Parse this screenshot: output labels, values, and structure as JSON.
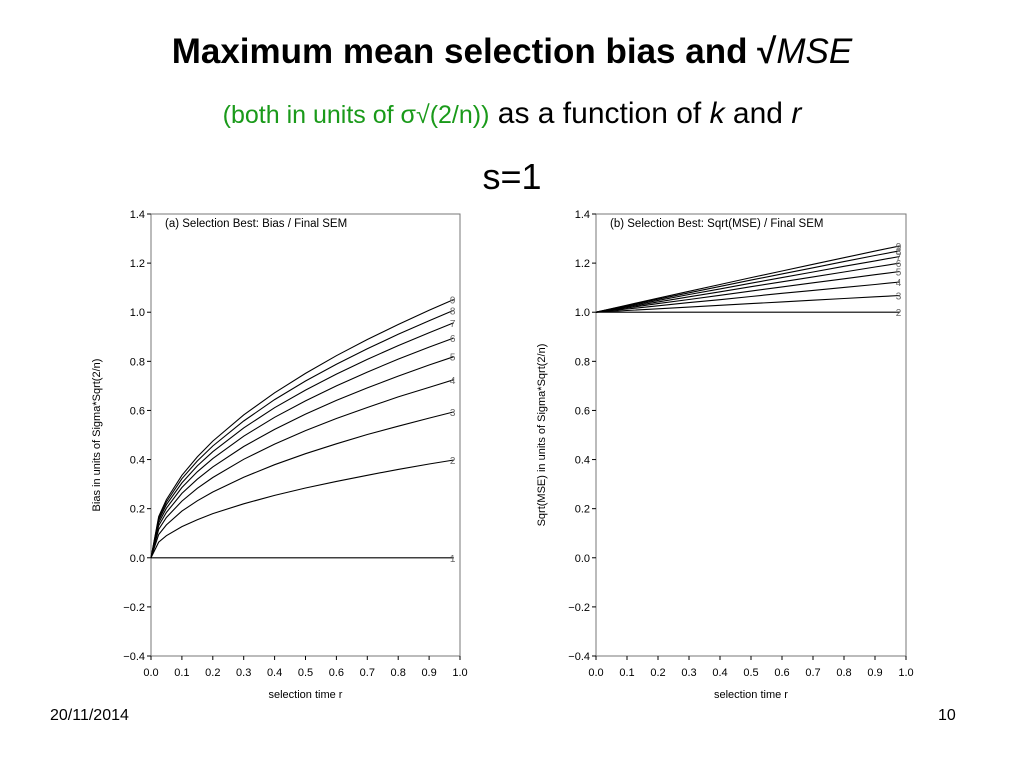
{
  "slide": {
    "title_bold": "Maximum mean selection bias and √",
    "title_mse": "MSE",
    "subtitle_green": "(both in units of σ√(2/n))",
    "subtitle_as": " as a function of ",
    "subtitle_k": "k",
    "subtitle_and": " and ",
    "subtitle_r": "r",
    "subtitle_s": "s=1",
    "date": "20/11/2014",
    "page": "10"
  },
  "chart_data": [
    {
      "type": "line",
      "title": "(a)  Selection Best:  Bias  /  Final SEM",
      "xlabel": "selection time  r",
      "ylabel": "Bias  in  units  of  Sigma*Sqrt(2/n)",
      "xlim": [
        0,
        1
      ],
      "ylim": [
        -0.4,
        1.4
      ],
      "xticks": [
        "0.0",
        "0.1",
        "0.2",
        "0.3",
        "0.4",
        "0.5",
        "0.6",
        "0.7",
        "0.8",
        "0.9",
        "1.0"
      ],
      "yticks": [
        "−0.4",
        "−0.2",
        "0.0",
        "0.2",
        "0.4",
        "0.6",
        "0.8",
        "1.0",
        "1.2",
        "1.4"
      ],
      "grid": false,
      "x": [
        0,
        0.025,
        0.05,
        0.1,
        0.15,
        0.2,
        0.3,
        0.4,
        0.5,
        0.6,
        0.7,
        0.8,
        0.9,
        0.98
      ],
      "series": [
        {
          "name": "1",
          "values": [
            0,
            0,
            0,
            0,
            0,
            0,
            0,
            0,
            0,
            0,
            0,
            0,
            0,
            0
          ]
        },
        {
          "name": "2",
          "values": [
            0,
            0.064,
            0.09,
            0.127,
            0.155,
            0.18,
            0.22,
            0.254,
            0.284,
            0.311,
            0.336,
            0.36,
            0.382,
            0.398
          ]
        },
        {
          "name": "3",
          "values": [
            0,
            0.095,
            0.134,
            0.19,
            0.232,
            0.268,
            0.328,
            0.379,
            0.424,
            0.464,
            0.502,
            0.536,
            0.569,
            0.594
          ]
        },
        {
          "name": "4",
          "values": [
            0,
            0.116,
            0.164,
            0.231,
            0.283,
            0.327,
            0.401,
            0.463,
            0.518,
            0.567,
            0.612,
            0.655,
            0.694,
            0.725
          ]
        },
        {
          "name": "5",
          "values": [
            0,
            0.131,
            0.185,
            0.262,
            0.32,
            0.37,
            0.453,
            0.523,
            0.585,
            0.641,
            0.692,
            0.74,
            0.785,
            0.819
          ]
        },
        {
          "name": "6",
          "values": [
            0,
            0.143,
            0.202,
            0.286,
            0.35,
            0.404,
            0.495,
            0.572,
            0.639,
            0.7,
            0.756,
            0.809,
            0.858,
            0.895
          ]
        },
        {
          "name": "7",
          "values": [
            0,
            0.153,
            0.216,
            0.305,
            0.374,
            0.432,
            0.529,
            0.611,
            0.683,
            0.748,
            0.808,
            0.864,
            0.916,
            0.957
          ]
        },
        {
          "name": "8",
          "values": [
            0,
            0.161,
            0.227,
            0.322,
            0.394,
            0.455,
            0.557,
            0.644,
            0.72,
            0.788,
            0.851,
            0.91,
            0.965,
            1.008
          ]
        },
        {
          "name": "9",
          "values": [
            0,
            0.168,
            0.237,
            0.336,
            0.411,
            0.475,
            0.582,
            0.672,
            0.751,
            0.823,
            0.889,
            0.95,
            1.008,
            1.052
          ]
        }
      ]
    },
    {
      "type": "line",
      "title": "(b)  Selection Best:  Sqrt(MSE)  /  Final SEM",
      "xlabel": "selection time  r",
      "ylabel": "Sqrt(MSE)  in  units  of  Sigma*Sqrt(2/n)",
      "xlim": [
        0,
        1
      ],
      "ylim": [
        -0.4,
        1.4
      ],
      "xticks": [
        "0.0",
        "0.1",
        "0.2",
        "0.3",
        "0.4",
        "0.5",
        "0.6",
        "0.7",
        "0.8",
        "0.9",
        "1.0"
      ],
      "yticks": [
        "−0.4",
        "−0.2",
        "0.0",
        "0.2",
        "0.4",
        "0.6",
        "0.8",
        "1.0",
        "1.2",
        "1.4"
      ],
      "grid": false,
      "x": [
        0,
        0.1,
        0.2,
        0.3,
        0.4,
        0.5,
        0.6,
        0.7,
        0.8,
        0.9,
        0.98
      ],
      "series": [
        {
          "name": "2",
          "values": [
            1,
            1.0,
            1.0,
            1.0,
            1.0,
            1.0,
            1.0,
            1.0,
            1.0,
            1.0,
            1.0
          ]
        },
        {
          "name": "3",
          "values": [
            1,
            1.007,
            1.014,
            1.021,
            1.028,
            1.035,
            1.042,
            1.049,
            1.056,
            1.063,
            1.068
          ]
        },
        {
          "name": "4",
          "values": [
            1,
            1.013,
            1.026,
            1.039,
            1.051,
            1.064,
            1.077,
            1.089,
            1.101,
            1.113,
            1.123
          ]
        },
        {
          "name": "5",
          "values": [
            1,
            1.017,
            1.035,
            1.052,
            1.069,
            1.086,
            1.103,
            1.12,
            1.136,
            1.153,
            1.166
          ]
        },
        {
          "name": "6",
          "values": [
            1,
            1.021,
            1.042,
            1.063,
            1.083,
            1.104,
            1.124,
            1.144,
            1.164,
            1.184,
            1.2
          ]
        },
        {
          "name": "7",
          "values": [
            1,
            1.024,
            1.048,
            1.072,
            1.095,
            1.118,
            1.141,
            1.164,
            1.187,
            1.209,
            1.227
          ]
        },
        {
          "name": "8",
          "values": [
            1,
            1.027,
            1.053,
            1.079,
            1.105,
            1.131,
            1.156,
            1.181,
            1.206,
            1.231,
            1.25
          ]
        },
        {
          "name": "9",
          "values": [
            1,
            1.029,
            1.057,
            1.085,
            1.113,
            1.141,
            1.168,
            1.195,
            1.222,
            1.249,
            1.27
          ]
        }
      ]
    }
  ]
}
